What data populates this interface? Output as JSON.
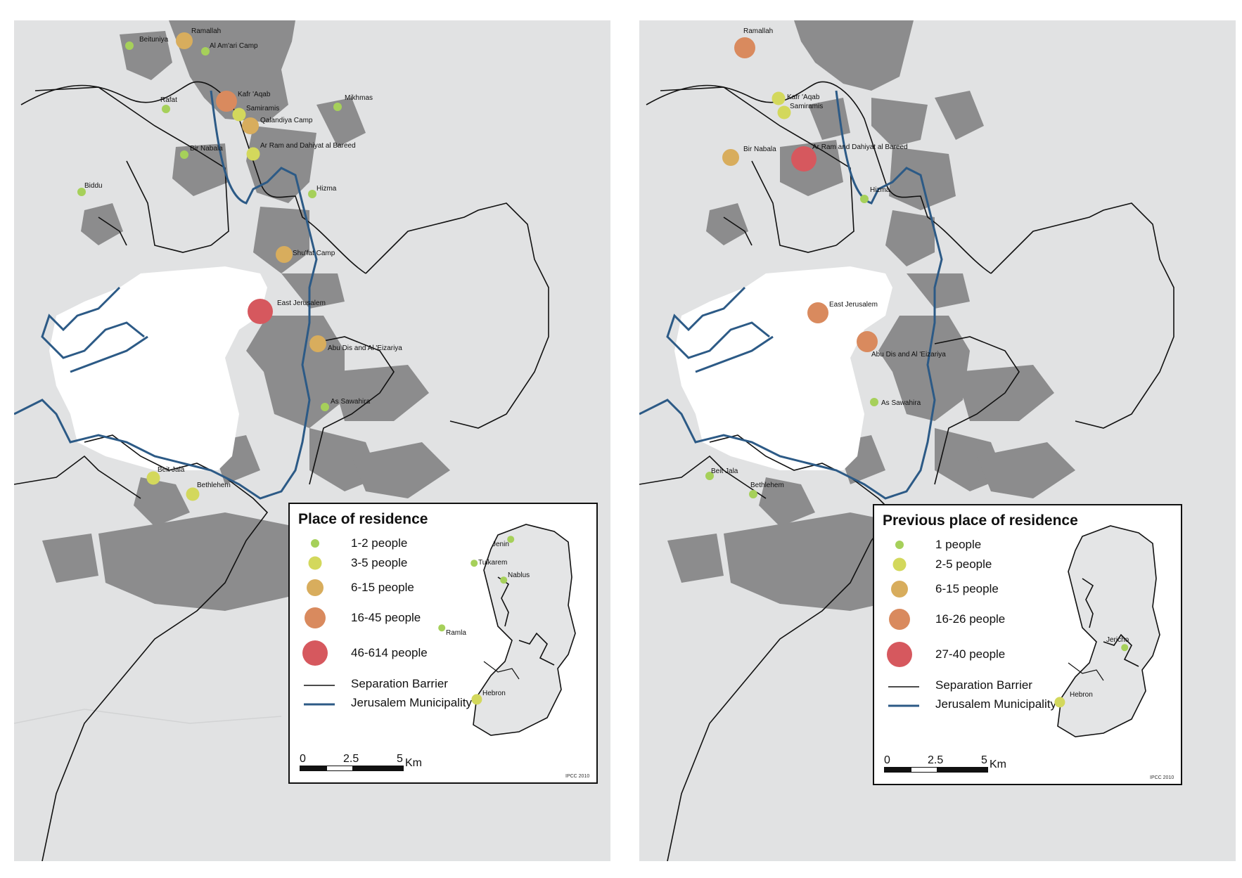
{
  "colors": {
    "c1": "#a6d05a",
    "c2": "#d3d85c",
    "c3": "#d8ad5d",
    "c4": "#d98a5e",
    "c5": "#d6585e",
    "barrier": "#111111",
    "municipality": "#2c5a86",
    "built_up": "#8c8c8d",
    "background": "#e1e2e3",
    "jerusalem_west": "#ffffff"
  },
  "maps": [
    {
      "legend": {
        "title": "Place of residence",
        "items": [
          {
            "label": "1-2 people",
            "size": 1
          },
          {
            "label": "3-5 people",
            "size": 2
          },
          {
            "label": "6-15 people",
            "size": 3
          },
          {
            "label": "16-45 people",
            "size": 4
          },
          {
            "label": "46-614 people",
            "size": 5
          }
        ],
        "barrier_label": "Separation Barrier",
        "municipality_label": "Jerusalem Municipality",
        "scale": {
          "ticks": [
            "0",
            "2.5",
            "5"
          ],
          "unit": "Km"
        },
        "credit": "IPCC 2010",
        "inset_places": [
          {
            "name": "Jenin",
            "size": 1
          },
          {
            "name": "Tulkarem",
            "size": 1
          },
          {
            "name": "Nablus",
            "size": 1
          },
          {
            "name": "Ramla",
            "size": 1
          },
          {
            "name": "Hebron",
            "size": 2
          }
        ]
      },
      "places": [
        {
          "name": "Beituniya",
          "size": 1
        },
        {
          "name": "Ramallah",
          "size": 3
        },
        {
          "name": "Al Am'ari Camp",
          "size": 1
        },
        {
          "name": "Kafr 'Aqab",
          "size": 4
        },
        {
          "name": "Mikhmas",
          "size": 1
        },
        {
          "name": "Rafat",
          "size": 1
        },
        {
          "name": "Samiramis",
          "size": 2
        },
        {
          "name": "Qalandiya Camp",
          "size": 3
        },
        {
          "name": "Bir Nabala",
          "size": 1
        },
        {
          "name": "Ar Ram and Dahiyat al Bareed",
          "size": 2
        },
        {
          "name": "Biddu",
          "size": 1
        },
        {
          "name": "Hizma",
          "size": 1
        },
        {
          "name": "Shu'fat Camp",
          "size": 3
        },
        {
          "name": "East Jerusalem",
          "size": 5
        },
        {
          "name": "Abu Dis and Al 'Eizariya",
          "size": 3
        },
        {
          "name": "As Sawahira",
          "size": 1
        },
        {
          "name": "Beit Jala",
          "size": 2
        },
        {
          "name": "Bethlehem",
          "size": 2
        }
      ]
    },
    {
      "legend": {
        "title": "Previous place of residence",
        "items": [
          {
            "label": "1 people",
            "size": 1
          },
          {
            "label": "2-5 people",
            "size": 2
          },
          {
            "label": "6-15 people",
            "size": 3
          },
          {
            "label": "16-26 people",
            "size": 4
          },
          {
            "label": "27-40 people",
            "size": 5
          }
        ],
        "barrier_label": "Separation Barrier",
        "municipality_label": "Jerusalem Municipality",
        "scale": {
          "ticks": [
            "0",
            "2.5",
            "5"
          ],
          "unit": "Km"
        },
        "credit": "IPCC 2010",
        "inset_places": [
          {
            "name": "Jericho",
            "size": 1
          },
          {
            "name": "Hebron",
            "size": 2
          }
        ]
      },
      "places": [
        {
          "name": "Ramallah",
          "size": 4
        },
        {
          "name": "Kafr 'Aqab",
          "size": 2
        },
        {
          "name": "Samiramis",
          "size": 2
        },
        {
          "name": "Bir Nabala",
          "size": 3
        },
        {
          "name": "Ar Ram and Dahiyat al Bareed",
          "size": 5
        },
        {
          "name": "Hizma",
          "size": 1
        },
        {
          "name": "East Jerusalem",
          "size": 4
        },
        {
          "name": "Abu Dis and Al 'Eizariya",
          "size": 4
        },
        {
          "name": "As Sawahira",
          "size": 1
        },
        {
          "name": "Beit Jala",
          "size": 1
        },
        {
          "name": "Bethlehem",
          "size": 1
        }
      ]
    }
  ]
}
